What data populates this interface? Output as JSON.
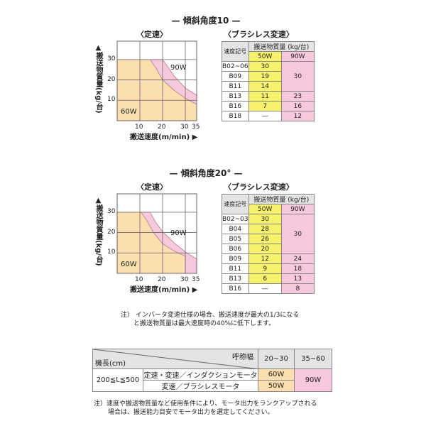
{
  "sections": [
    {
      "title": "— 傾斜角度10 —",
      "left_sub": "〈定速〉",
      "right_sub": "〈ブラシレス変速〉"
    },
    {
      "title": "— 傾斜角度20° —",
      "left_sub": "〈定速〉",
      "right_sub": "〈ブラシレス変速〉"
    }
  ],
  "chart_data": [
    {
      "type": "area",
      "title": "",
      "xlabel": "搬送速度(m/min) ▶",
      "ylabel": "▲搬送物質量(kg/台)",
      "xlim": [
        0,
        35
      ],
      "ylim": [
        0,
        39
      ],
      "xticks": [
        10,
        20,
        30,
        35
      ],
      "yticks": [
        10,
        20,
        30
      ],
      "grid": true,
      "series": [
        {
          "name": "90W",
          "color": "#f8c9de",
          "points": [
            [
              0,
              30
            ],
            [
              20,
              30
            ],
            [
              22,
              27
            ],
            [
              25,
              22
            ],
            [
              30,
              16
            ],
            [
              35,
              12.5
            ]
          ]
        },
        {
          "name": "60W",
          "color": "#fbdfae",
          "points": [
            [
              0,
              30
            ],
            [
              14.5,
              30
            ],
            [
              17,
              26
            ],
            [
              20,
              20
            ],
            [
              25,
              15
            ],
            [
              30,
              11
            ],
            [
              35,
              8
            ]
          ]
        }
      ]
    },
    {
      "type": "area",
      "title": "",
      "xlabel": "搬送速度(m/min) ▶",
      "ylabel": "▲搬送物質量(kg/台)",
      "xlim": [
        0,
        35
      ],
      "ylim": [
        0,
        39
      ],
      "xticks": [
        10,
        20,
        30,
        35
      ],
      "yticks": [
        10,
        20,
        30
      ],
      "grid": true,
      "series": [
        {
          "name": "90W",
          "color": "#f8c9de",
          "points": [
            [
              0,
              30
            ],
            [
              14.5,
              30
            ],
            [
              17,
              25
            ],
            [
              20,
              20.5
            ],
            [
              25,
              15
            ],
            [
              30,
              10.5
            ],
            [
              35,
              7
            ],
            [
              35,
              0
            ]
          ]
        },
        {
          "name": "60W",
          "color": "#fbdfae",
          "points": [
            [
              0,
              30
            ],
            [
              10.5,
              30
            ],
            [
              13,
              26
            ],
            [
              16,
              20
            ],
            [
              20,
              14.5
            ],
            [
              25,
              11
            ],
            [
              30,
              8.5
            ],
            [
              30,
              0
            ]
          ]
        }
      ]
    }
  ],
  "tables": [
    {
      "code_header": "速度記号",
      "mass_header": "搬送物質量 (kg/台)",
      "col50": "50W",
      "col90": "90W",
      "rows": [
        [
          "B02~06",
          "30"
        ],
        [
          "B09",
          "19"
        ],
        [
          "B11",
          "14"
        ],
        [
          "B13",
          "11",
          "23"
        ],
        [
          "B16",
          "7",
          "16"
        ],
        [
          "B18",
          "—",
          "12"
        ]
      ],
      "merged90": "30",
      "merged_rows": 3
    },
    {
      "code_header": "速度記号",
      "mass_header": "搬送物質量 (kg/台)",
      "col50": "50W",
      "col90": "90W",
      "rows": [
        [
          "B02~03",
          "30"
        ],
        [
          "B04",
          "28"
        ],
        [
          "B05",
          "26"
        ],
        [
          "B06",
          "20"
        ],
        [
          "B09",
          "12",
          "24"
        ],
        [
          "B11",
          "9",
          "18"
        ],
        [
          "B13",
          "6",
          "13"
        ],
        [
          "B16",
          "—",
          "8"
        ]
      ],
      "merged90": "30",
      "merged_rows": 4
    }
  ],
  "note1": [
    "注） インバータ変速仕様の場合、搬送速度が最大の1/3になる",
    "と搬送物質量は最大速度時の40%に低下します。"
  ],
  "motor_table": {
    "corner_top": "呼称幅",
    "corner_bottom": "機長(cm)",
    "w1": "20~30",
    "w2": "35~60",
    "length": "200≦L≦500",
    "row1": "定速・変速／インダクションモータ",
    "row1_val": "60W",
    "row2": "変速／ブラシレスモータ",
    "row2_val": "50W",
    "merged": "90W"
  },
  "note2": [
    "注）速度や搬送物質量など使用条件により、モータ出力をランクアップされる",
    "場合は、搬送能力目安でモータ出力を選定してください。"
  ]
}
